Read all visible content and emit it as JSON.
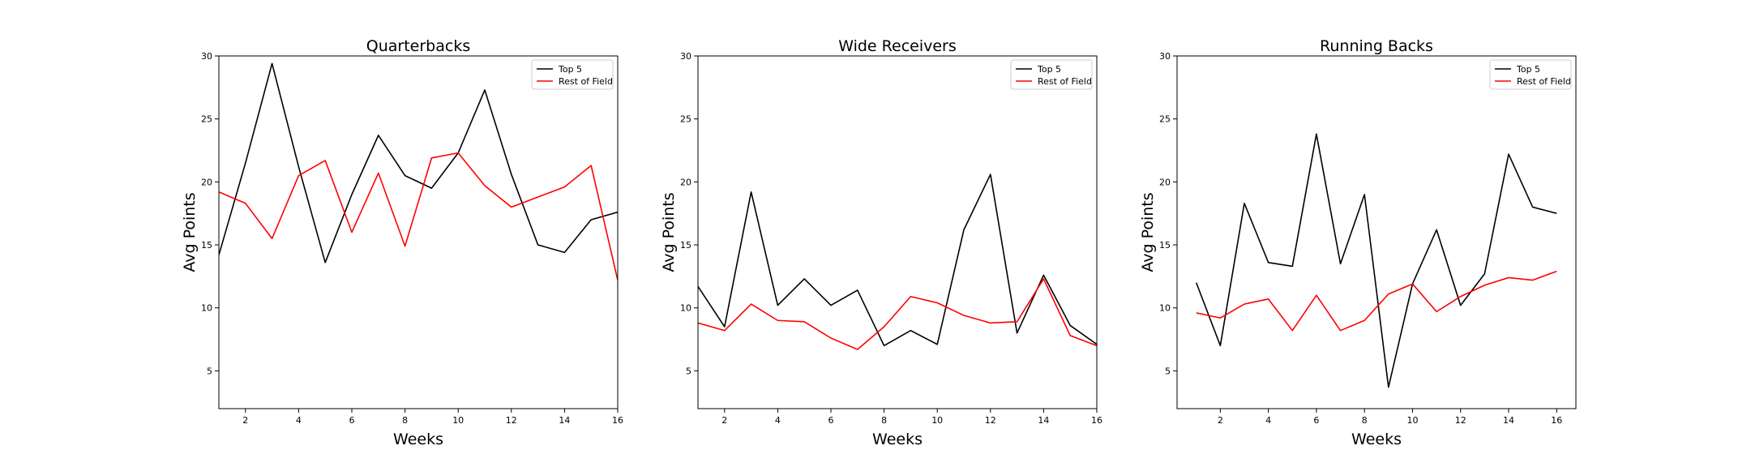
{
  "chart_data": [
    {
      "type": "line",
      "title": "Quarterbacks",
      "xlabel": "Weeks",
      "ylabel": "Avg Points",
      "xlim": [
        1,
        16
      ],
      "ylim": [
        2,
        30
      ],
      "xticks": [
        2,
        4,
        6,
        8,
        10,
        12,
        14,
        16
      ],
      "yticks": [
        5,
        10,
        15,
        20,
        25,
        30
      ],
      "x": [
        1,
        2,
        3,
        4,
        5,
        6,
        7,
        8,
        9,
        10,
        11,
        12,
        13,
        14,
        15,
        16
      ],
      "legend_position": "top-right",
      "series": [
        {
          "name": "Top 5",
          "color": "#000000",
          "values": [
            14.2,
            21.5,
            29.4,
            21.2,
            13.6,
            19.0,
            23.7,
            20.5,
            19.5,
            22.3,
            27.3,
            20.6,
            15.0,
            14.4,
            17.0,
            17.6
          ]
        },
        {
          "name": "Rest of Field",
          "color": "#ff0000",
          "values": [
            19.2,
            18.3,
            15.5,
            20.5,
            21.7,
            16.0,
            20.7,
            14.9,
            21.9,
            22.3,
            19.7,
            18.0,
            18.8,
            19.6,
            21.3,
            12.2
          ]
        }
      ]
    },
    {
      "type": "line",
      "title": "Wide Receivers",
      "xlabel": "Weeks",
      "ylabel": "Avg Points",
      "xlim": [
        1,
        16
      ],
      "ylim": [
        2,
        30
      ],
      "xticks": [
        2,
        4,
        6,
        8,
        10,
        12,
        14,
        16
      ],
      "yticks": [
        5,
        10,
        15,
        20,
        25,
        30
      ],
      "x": [
        1,
        2,
        3,
        4,
        5,
        6,
        7,
        8,
        9,
        10,
        11,
        12,
        13,
        14,
        15,
        16
      ],
      "legend_position": "top-right",
      "series": [
        {
          "name": "Top 5",
          "color": "#000000",
          "values": [
            11.7,
            8.5,
            19.2,
            10.2,
            12.3,
            10.2,
            11.4,
            7.0,
            8.2,
            7.1,
            16.2,
            20.6,
            8.0,
            12.6,
            8.6,
            7.1
          ]
        },
        {
          "name": "Rest of Field",
          "color": "#ff0000",
          "values": [
            8.8,
            8.2,
            10.3,
            9.0,
            8.9,
            7.6,
            6.7,
            8.5,
            10.9,
            10.4,
            9.4,
            8.8,
            8.9,
            12.3,
            7.8,
            7.0
          ]
        }
      ]
    },
    {
      "type": "line",
      "title": "Running Backs",
      "xlabel": "Weeks",
      "ylabel": "Avg Points",
      "xlim": [
        0.2,
        16.8
      ],
      "ylim": [
        2,
        30
      ],
      "xticks": [
        2,
        4,
        6,
        8,
        10,
        12,
        14,
        16
      ],
      "yticks": [
        5,
        10,
        15,
        20,
        25,
        30
      ],
      "x": [
        1,
        2,
        3,
        4,
        5,
        6,
        7,
        8,
        9,
        10,
        11,
        12,
        13,
        14,
        15,
        16
      ],
      "legend_position": "top-right",
      "series": [
        {
          "name": "Top 5",
          "color": "#000000",
          "values": [
            12.0,
            7.0,
            18.3,
            13.6,
            13.3,
            23.8,
            13.5,
            19.0,
            3.7,
            11.9,
            16.2,
            10.2,
            12.7,
            22.2,
            18.0,
            17.5
          ]
        },
        {
          "name": "Rest of Field",
          "color": "#ff0000",
          "values": [
            9.6,
            9.2,
            10.3,
            10.7,
            8.2,
            11.0,
            8.2,
            9.0,
            11.1,
            11.9,
            9.7,
            10.9,
            11.8,
            12.4,
            12.2,
            12.9
          ]
        }
      ]
    }
  ]
}
